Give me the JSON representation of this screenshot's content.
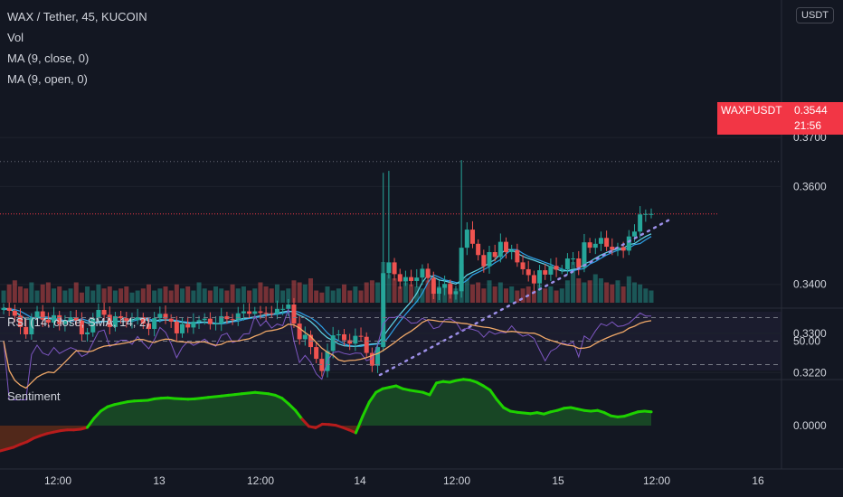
{
  "header": {
    "title": "WAX / Tether, 45, KUCOIN",
    "currency": "USDT"
  },
  "legends": [
    "Vol",
    "MA (9, close, 0)",
    "MA (9, open, 0)"
  ],
  "rsi_label": "RSI (14, close, SMA, 14, 2)",
  "sentiment_label": "Sentiment",
  "last_price": {
    "symbol": "WAXPUSDT",
    "price": "0.3544",
    "countdown": "21:56"
  },
  "colors": {
    "up": "#26a69a",
    "down": "#ef5350",
    "ma_close": "#5fd7e8",
    "ma_open": "#2ea1e8",
    "rsi": "#7e57c2",
    "rsi_ma": "#f0a868",
    "sentiment_pos": "#1ed100",
    "sentiment_neg": "#b71c1c",
    "trendline": "#9c8fe8"
  },
  "chart_data": [
    {
      "type": "candlestick",
      "title": "WAX / Tether, 45, KUCOIN",
      "y_ticks": [
        "0.3700",
        "0.3600",
        "0.3400",
        "0.3300",
        "0.3220"
      ],
      "x_ticks": [
        "12:00",
        "13",
        "12:00",
        "14",
        "12:00",
        "15",
        "12:00",
        "16"
      ],
      "ylim": [
        0.3175,
        0.3735
      ],
      "last_price": 0.3544,
      "dotted_level": 0.3651,
      "trendline": [
        [
          0.3215,
          0.3536
        ]
      ],
      "closes": [
        0.3352,
        0.3346,
        0.3336,
        0.3313,
        0.3298,
        0.3332,
        0.3345,
        0.3328,
        0.3322,
        0.3337,
        0.3319,
        0.3326,
        0.3333,
        0.3326,
        0.3298,
        0.3302,
        0.3331,
        0.3348,
        0.3338,
        0.3313,
        0.3335,
        0.3331,
        0.3325,
        0.3327,
        0.3333,
        0.332,
        0.3309,
        0.3331,
        0.334,
        0.333,
        0.3324,
        0.33,
        0.3319,
        0.3312,
        0.3324,
        0.3327,
        0.333,
        0.3319,
        0.332,
        0.3335,
        0.3329,
        0.3328,
        0.3341,
        0.3345,
        0.334,
        0.3345,
        0.3342,
        0.3341,
        0.334,
        0.335,
        0.335,
        0.3359,
        0.332,
        0.3288,
        0.3297,
        0.3272,
        0.3248,
        0.3223,
        0.3264,
        0.3296,
        0.3298,
        0.3286,
        0.3279,
        0.3295,
        0.3293,
        0.326,
        0.3234,
        0.3272,
        0.3423,
        0.3445,
        0.3421,
        0.3406,
        0.3415,
        0.3407,
        0.3414,
        0.3432,
        0.3413,
        0.3381,
        0.3393,
        0.3401,
        0.338,
        0.3386,
        0.3475,
        0.3512,
        0.3483,
        0.346,
        0.3437,
        0.3466,
        0.3456,
        0.3487,
        0.3466,
        0.347,
        0.3445,
        0.3431,
        0.3419,
        0.3402,
        0.3429,
        0.342,
        0.3438,
        0.343,
        0.3431,
        0.3453,
        0.3453,
        0.3434,
        0.3486,
        0.3475,
        0.3483,
        0.3495,
        0.3477,
        0.3471,
        0.3476,
        0.3469,
        0.3498,
        0.3508,
        0.3543,
        0.3544,
        0.3544
      ],
      "volume_rel": [
        0.3,
        0.45,
        0.55,
        0.4,
        0.35,
        0.5,
        0.3,
        0.45,
        0.5,
        0.35,
        0.4,
        0.3,
        0.35,
        0.5,
        0.25,
        0.4,
        0.3,
        0.45,
        0.35,
        0.4,
        0.3,
        0.35,
        0.4,
        0.25,
        0.3,
        0.35,
        0.45,
        0.3,
        0.35,
        0.4,
        0.3,
        0.45,
        0.35,
        0.4,
        0.3,
        0.5,
        0.35,
        0.3,
        0.4,
        0.35,
        0.3,
        0.45,
        0.35,
        0.4,
        0.3,
        0.35,
        0.5,
        0.4,
        0.35,
        0.45,
        0.3,
        0.35,
        0.55,
        0.5,
        0.45,
        0.6,
        0.3,
        0.25,
        0.4,
        0.3,
        0.35,
        0.45,
        0.3,
        0.4,
        0.3,
        0.5,
        0.55,
        0.5,
        1.0,
        0.7,
        0.6,
        0.4,
        0.5,
        0.45,
        0.4,
        0.35,
        0.55,
        0.5,
        0.4,
        0.45,
        0.5,
        0.35,
        0.95,
        0.6,
        0.45,
        0.5,
        0.35,
        0.55,
        0.4,
        0.5,
        0.35,
        0.4,
        0.3,
        0.35,
        0.4,
        0.3,
        0.45,
        0.35,
        0.4,
        0.3,
        0.35,
        0.55,
        1.0,
        0.6,
        0.5,
        0.55,
        0.7,
        0.6,
        0.5,
        0.45,
        0.55,
        0.4,
        0.65,
        0.5,
        0.45,
        0.35,
        0.3
      ]
    },
    {
      "type": "line",
      "title": "RSI (14, close, SMA, 14, 2)",
      "y_ticks": [
        "50.00"
      ],
      "bands": [
        30,
        50,
        70
      ],
      "ylim": [
        25,
        75
      ]
    },
    {
      "type": "area",
      "title": "Sentiment",
      "y_ticks": [
        "0.0000"
      ],
      "values": [
        -0.7,
        -0.65,
        -0.6,
        -0.52,
        -0.45,
        -0.35,
        -0.28,
        -0.22,
        -0.18,
        -0.14,
        -0.12,
        -0.12,
        -0.1,
        -0.05,
        0.2,
        0.4,
        0.52,
        0.58,
        0.62,
        0.66,
        0.68,
        0.69,
        0.7,
        0.74,
        0.76,
        0.77,
        0.75,
        0.74,
        0.73,
        0.74,
        0.76,
        0.78,
        0.8,
        0.82,
        0.84,
        0.86,
        0.88,
        0.9,
        0.92,
        0.9,
        0.88,
        0.84,
        0.76,
        0.6,
        0.42,
        0.18,
        -0.02,
        -0.06,
        0.04,
        0.03,
        0.01,
        -0.05,
        -0.12,
        -0.2,
        0.25,
        0.65,
        0.92,
        1.02,
        1.06,
        1.1,
        1.02,
        0.98,
        0.95,
        0.92,
        0.85,
        1.18,
        1.22,
        1.2,
        1.25,
        1.28,
        1.26,
        1.2,
        1.1,
        0.98,
        0.72,
        0.5,
        0.4,
        0.37,
        0.35,
        0.33,
        0.36,
        0.32,
        0.38,
        0.42,
        0.48,
        0.5,
        0.46,
        0.42,
        0.4,
        0.42,
        0.36,
        0.27,
        0.24,
        0.26,
        0.32,
        0.38,
        0.4,
        0.38
      ]
    }
  ],
  "time_axis": [
    "12:00",
    "13",
    "12:00",
    "14",
    "12:00",
    "15",
    "12:00",
    "16"
  ]
}
